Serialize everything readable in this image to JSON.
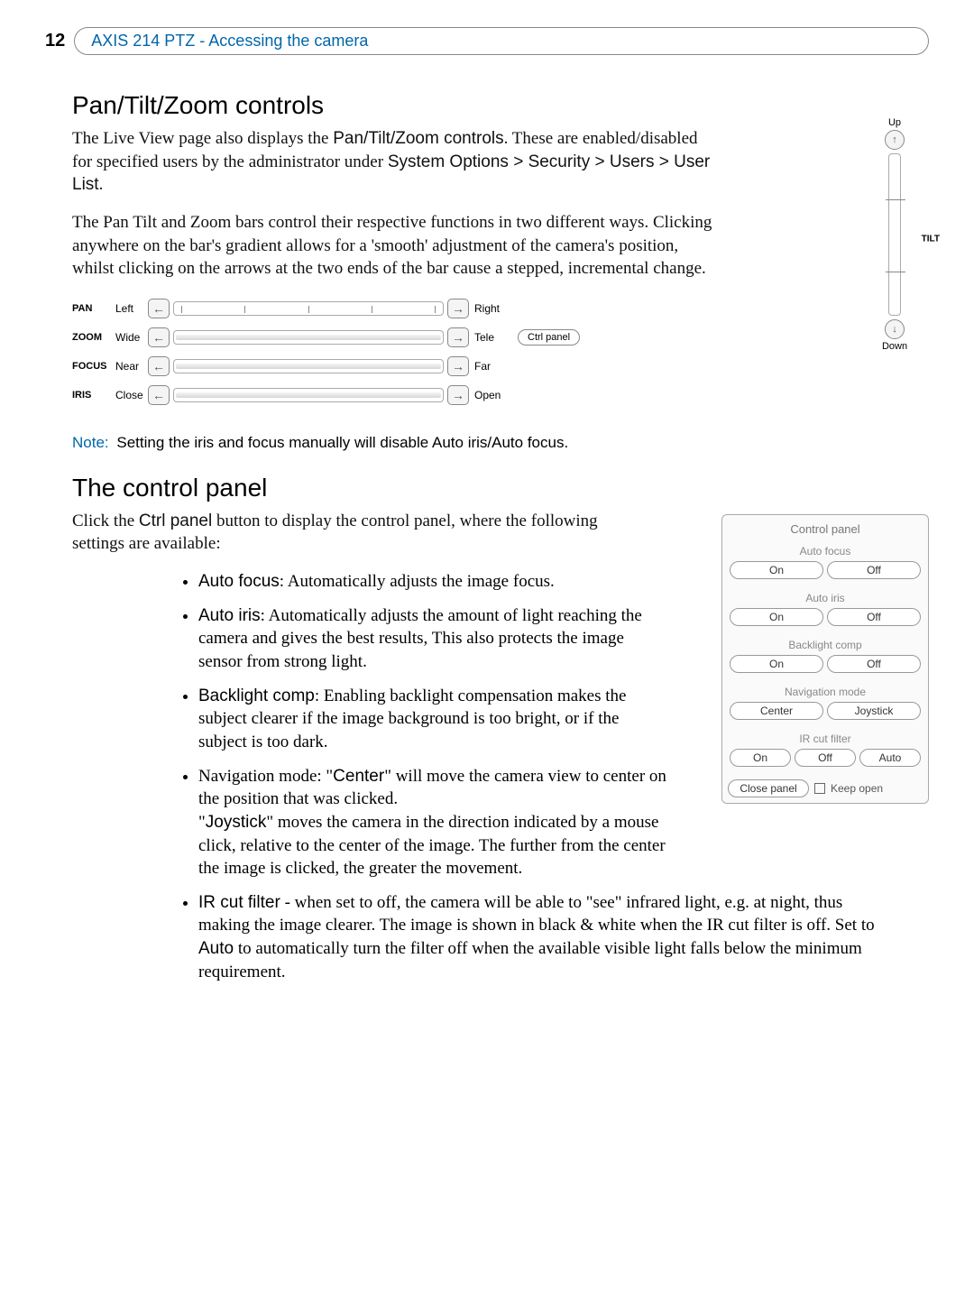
{
  "page_number": "12",
  "header_title": "AXIS 214 PTZ - Accessing the camera",
  "section1_title": "Pan/Tilt/Zoom controls",
  "p1_a": "The Live View page also displays the ",
  "p1_b": "Pan/Tilt/Zoom controls",
  "p1_c": ". These are enabled/disabled for specified users by the administrator under ",
  "p1_d": "System Options > Security > Users > User List",
  "p1_e": ".",
  "p2": "The Pan Tilt and Zoom bars control their respective functions in two different ways. Clicking anywhere on the bar's gradient allows for a 'smooth' adjustment of the camera's position, whilst clicking on the arrows at the two ends of the bar cause a stepped, incremental change.",
  "ptz_rows": [
    {
      "name": "PAN",
      "left": "Left",
      "right": "Right",
      "ticks": true,
      "fill": false
    },
    {
      "name": "ZOOM",
      "left": "Wide",
      "right": "Tele",
      "ticks": false,
      "fill": true
    },
    {
      "name": "FOCUS",
      "left": "Near",
      "right": "Far",
      "ticks": false,
      "fill": true
    },
    {
      "name": "IRIS",
      "left": "Close",
      "right": "Open",
      "ticks": false,
      "fill": true
    }
  ],
  "ctrl_panel_button": "Ctrl panel",
  "tilt": {
    "up": "Up",
    "down": "Down",
    "side": "TILT"
  },
  "note_label": "Note:",
  "note_text": "Setting the iris and focus manually will disable Auto iris/Auto focus.",
  "section2_title": "The control panel",
  "p3_a": "Click the ",
  "p3_b": "Ctrl panel",
  "p3_c": " button to display the control panel, where the following settings are available:",
  "bullets": [
    {
      "b": "Auto focus",
      "t": ": Automatically adjusts the image focus."
    },
    {
      "b": "Auto iris",
      "t": ": Automatically adjusts the amount of light reaching the camera and gives the best results, This also protects the image sensor from strong light."
    },
    {
      "b": "Backlight comp",
      "t": ": Enabling backlight compensation makes the subject clearer if the image background is too bright, or if the subject is too dark."
    }
  ],
  "bullet4_pre": "Navigation mode: \"",
  "bullet4_b1": "Center",
  "bullet4_mid": "\" will move the camera view to center on the position that was clicked.",
  "bullet4_line2_pre": "\"",
  "bullet4_b2": "Joystick",
  "bullet4_line2_post": "\" moves the camera in the direction indicated by a mouse click, relative to the center of the image. The further from the center the image is clicked, the greater the movement.",
  "bullet5_b": "IR cut filter",
  "bullet5_t1": " - when set to off, the camera will be able to \"see\" infrared light, e.g. at night, thus making the image clearer. The image is shown in black & white when the IR cut filter is off. Set to ",
  "bullet5_b2": "Auto",
  "bullet5_t2": " to automatically turn the filter off when the available visible light falls below the minimum requirement.",
  "ctrl_fig": {
    "title": "Control panel",
    "groups": [
      {
        "label": "Auto focus",
        "buttons": [
          "On",
          "Off"
        ]
      },
      {
        "label": "Auto iris",
        "buttons": [
          "On",
          "Off"
        ]
      },
      {
        "label": "Backlight comp",
        "buttons": [
          "On",
          "Off"
        ]
      },
      {
        "label": "Navigation mode",
        "buttons": [
          "Center",
          "Joystick"
        ]
      },
      {
        "label": "IR cut filter",
        "buttons": [
          "On",
          "Off",
          "Auto"
        ]
      }
    ],
    "close_btn": "Close panel",
    "keep_open": "Keep open"
  },
  "colors": {
    "link_blue": "#0066aa",
    "border_gray": "#888888",
    "fill_gray": "#d8d8d8"
  }
}
